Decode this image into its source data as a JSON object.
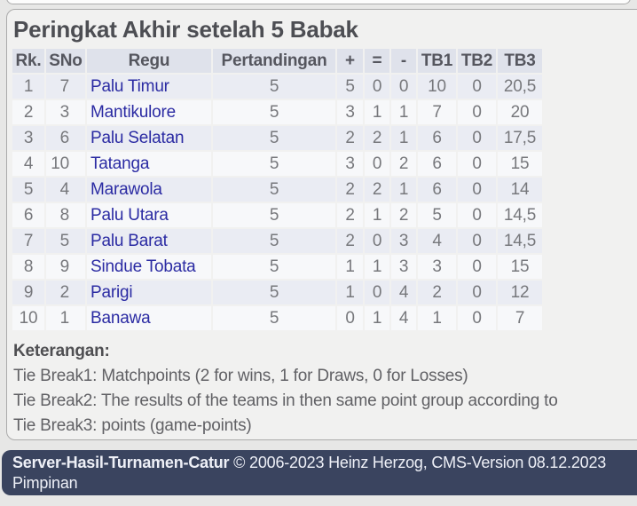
{
  "page_title": "Peringkat Akhir setelah 5 Babak",
  "standings": {
    "headers": [
      "Rk.",
      "SNo",
      "Regu",
      "Pertandingan",
      "+",
      "=",
      "-",
      "TB1",
      "TB2",
      "TB3"
    ],
    "rows": [
      [
        "1",
        "7",
        "Palu Timur",
        "5",
        "5",
        "0",
        "0",
        "10",
        "0",
        "20,5"
      ],
      [
        "2",
        "3",
        "Mantikulore",
        "5",
        "3",
        "1",
        "1",
        "7",
        "0",
        "20"
      ],
      [
        "3",
        "6",
        "Palu Selatan",
        "5",
        "2",
        "2",
        "1",
        "6",
        "0",
        "17,5"
      ],
      [
        "4",
        "10",
        "Tatanga",
        "5",
        "3",
        "0",
        "2",
        "6",
        "0",
        "15"
      ],
      [
        "5",
        "4",
        "Marawola",
        "5",
        "2",
        "2",
        "1",
        "6",
        "0",
        "14"
      ],
      [
        "6",
        "8",
        "Palu Utara",
        "5",
        "2",
        "1",
        "2",
        "5",
        "0",
        "14,5"
      ],
      [
        "7",
        "5",
        "Palu Barat",
        "5",
        "2",
        "0",
        "3",
        "4",
        "0",
        "14,5"
      ],
      [
        "8",
        "9",
        "Sindue Tobata",
        "5",
        "1",
        "1",
        "3",
        "3",
        "0",
        "15"
      ],
      [
        "9",
        "2",
        "Parigi",
        "5",
        "1",
        "0",
        "4",
        "2",
        "0",
        "12"
      ],
      [
        "10",
        "1",
        "Banawa",
        "5",
        "0",
        "1",
        "4",
        "1",
        "0",
        "7"
      ]
    ]
  },
  "legend": {
    "heading": "Keterangan:",
    "lines": [
      "Tie Break1: Matchpoints (2 for wins, 1 for Draws, 0 for Losses)",
      "Tie Break2: The results of the teams in then same point group according to",
      "Tie Break3: points (game-points)"
    ]
  },
  "footer": {
    "brand": "Server-Hasil-Turnamen-Catur",
    "copyright": "© 2006-2023 Heinz Herzog, CMS-Version 08.12.2023",
    "secondary": "Pimpinan"
  },
  "colors": {
    "page_bg": "#e7e7e6",
    "panel_bg": "#f1f1f0",
    "header_cell_bg": "#dfe2eb",
    "row_odd_bg": "#eaecf3",
    "row_even_bg": "#f7f8fa",
    "team_link": "#2b2ba3",
    "footer_bg": "#3a445f",
    "footer_text": "#eef0f7",
    "body_text": "#77787c"
  }
}
